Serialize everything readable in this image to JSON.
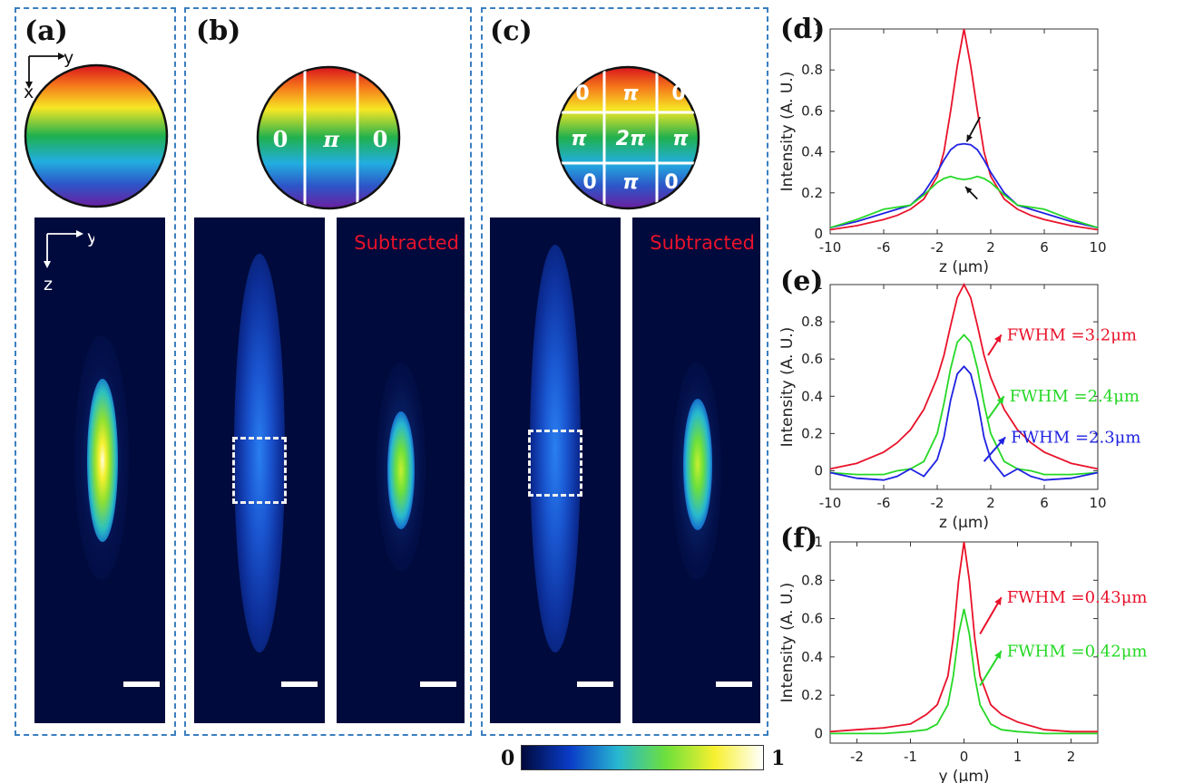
{
  "panels": {
    "a": {
      "label": "(a)"
    },
    "b": {
      "label": "(b)",
      "subtracted": "Subtracted"
    },
    "c": {
      "label": "(c)",
      "subtracted": "Subtracted"
    },
    "d": {
      "label": "(d)"
    },
    "e": {
      "label": "(e)"
    },
    "f": {
      "label": "(f)"
    }
  },
  "axes_glyphs": {
    "y": "y",
    "x": "x",
    "z": "z"
  },
  "phase_masks": {
    "b": [
      "0",
      "π",
      "0"
    ],
    "c": [
      "0",
      "π",
      "0",
      "π",
      "2π",
      "π",
      "0",
      "π",
      "0"
    ]
  },
  "colorbar": {
    "min": "0",
    "max": "1",
    "stops": [
      "#000a3c",
      "#0a3cc8",
      "#28b8d0",
      "#6ee03a",
      "#f8f030",
      "#ffffff"
    ]
  },
  "colors": {
    "red": "#e8122a",
    "green": "#26d826",
    "blue": "#1f22e0",
    "dash_border": "#3a7fc1",
    "dark_bg": "#000a3c"
  },
  "chart_data": [
    {
      "type": "line",
      "label": "(d)",
      "xlabel": "z (μm)",
      "ylabel": "Intensity (A. U.)",
      "xlim": [
        -10,
        10
      ],
      "ylim": [
        0,
        1
      ],
      "xticks": [
        "-10",
        "-6",
        "-2",
        "2",
        "6",
        "10"
      ],
      "yticks": [
        "0",
        "0.2",
        "0.4",
        "0.6",
        "0.8",
        "1"
      ],
      "annotations": [],
      "series": [
        {
          "color": "#e8122a",
          "x": [
            -10,
            -8,
            -6,
            -5,
            -4,
            -3,
            -2,
            -1.5,
            -1,
            -0.5,
            0,
            0.5,
            1,
            1.5,
            2,
            3,
            4,
            5,
            6,
            8,
            10
          ],
          "y": [
            0.02,
            0.04,
            0.07,
            0.09,
            0.12,
            0.17,
            0.28,
            0.4,
            0.6,
            0.82,
            1,
            0.82,
            0.6,
            0.4,
            0.28,
            0.17,
            0.12,
            0.09,
            0.07,
            0.04,
            0.02
          ]
        },
        {
          "color": "#1f22e0",
          "x": [
            -10,
            -8,
            -6,
            -5,
            -4,
            -3,
            -2,
            -1.5,
            -1,
            -0.5,
            0,
            0.5,
            1,
            1.5,
            2,
            3,
            4,
            5,
            6,
            8,
            10
          ],
          "y": [
            0.03,
            0.06,
            0.1,
            0.12,
            0.14,
            0.2,
            0.3,
            0.36,
            0.41,
            0.435,
            0.44,
            0.435,
            0.41,
            0.36,
            0.3,
            0.2,
            0.14,
            0.12,
            0.1,
            0.06,
            0.03
          ]
        },
        {
          "color": "#26d826",
          "x": [
            -10,
            -8,
            -6,
            -5,
            -4,
            -3,
            -2,
            -1.5,
            -1,
            -0.5,
            0,
            0.5,
            1,
            1.5,
            2,
            3,
            4,
            5,
            6,
            8,
            10
          ],
          "y": [
            0.03,
            0.07,
            0.12,
            0.13,
            0.14,
            0.19,
            0.25,
            0.27,
            0.28,
            0.27,
            0.265,
            0.27,
            0.28,
            0.27,
            0.25,
            0.19,
            0.14,
            0.13,
            0.12,
            0.07,
            0.03
          ]
        }
      ]
    },
    {
      "type": "line",
      "label": "(e)",
      "xlabel": "z (μm)",
      "ylabel": "Intensity (A. U.)",
      "xlim": [
        -10,
        10
      ],
      "ylim": [
        -0.1,
        1
      ],
      "xticks": [
        "-10",
        "-6",
        "-2",
        "2",
        "6",
        "10"
      ],
      "yticks": [
        "0",
        "0.2",
        "0.4",
        "0.6",
        "0.8",
        "1"
      ],
      "annotations": [
        {
          "text": "FWHM =3.2μm",
          "color": "#e8122a"
        },
        {
          "text": "FWHM =2.4μm",
          "color": "#26d826"
        },
        {
          "text": "FWHM =2.3μm",
          "color": "#1f22e0"
        }
      ],
      "series": [
        {
          "color": "#e8122a",
          "x": [
            -10,
            -8,
            -6,
            -5,
            -4,
            -3,
            -2,
            -1.5,
            -1,
            -0.5,
            0,
            0.5,
            1,
            1.5,
            2,
            3,
            4,
            5,
            6,
            8,
            10
          ],
          "y": [
            0.01,
            0.04,
            0.1,
            0.15,
            0.22,
            0.33,
            0.5,
            0.62,
            0.78,
            0.93,
            1,
            0.93,
            0.78,
            0.62,
            0.5,
            0.33,
            0.22,
            0.15,
            0.1,
            0.04,
            0.01
          ]
        },
        {
          "color": "#26d826",
          "x": [
            -10,
            -8,
            -6,
            -5,
            -4,
            -3,
            -2,
            -1.5,
            -1,
            -0.5,
            0,
            0.5,
            1,
            1.5,
            2,
            3,
            4,
            5,
            6,
            8,
            10
          ],
          "y": [
            -0.01,
            -0.02,
            -0.02,
            0,
            0.01,
            0.05,
            0.2,
            0.36,
            0.55,
            0.69,
            0.73,
            0.69,
            0.55,
            0.36,
            0.2,
            0.05,
            0.01,
            0,
            -0.02,
            -0.02,
            -0.01
          ]
        },
        {
          "color": "#1f22e0",
          "x": [
            -10,
            -8,
            -6,
            -5,
            -4,
            -3,
            -2,
            -1.5,
            -1,
            -0.5,
            0,
            0.5,
            1,
            1.5,
            2,
            3,
            4,
            5,
            6,
            8,
            10
          ],
          "y": [
            -0.01,
            -0.04,
            -0.05,
            -0.03,
            0.01,
            -0.03,
            0.06,
            0.18,
            0.38,
            0.52,
            0.56,
            0.52,
            0.38,
            0.18,
            0.06,
            -0.03,
            0.01,
            -0.03,
            -0.05,
            -0.04,
            -0.01
          ]
        }
      ]
    },
    {
      "type": "line",
      "label": "(f)",
      "xlabel": "y (μm)",
      "ylabel": "Intensity (A. U.)",
      "xlim": [
        -2.5,
        2.5
      ],
      "ylim": [
        -0.05,
        1
      ],
      "xticks": [
        "-2",
        "-1",
        "0",
        "1",
        "2"
      ],
      "yticks": [
        "0",
        "0.2",
        "0.4",
        "0.6",
        "0.8",
        "1"
      ],
      "annotations": [
        {
          "text": "FWHM =0.43μm",
          "color": "#e8122a"
        },
        {
          "text": "FWHM =0.42μm",
          "color": "#26d826"
        }
      ],
      "series": [
        {
          "color": "#e8122a",
          "x": [
            -2.5,
            -2,
            -1.5,
            -1,
            -0.7,
            -0.5,
            -0.3,
            -0.2,
            -0.1,
            0,
            0.1,
            0.2,
            0.3,
            0.5,
            0.7,
            1,
            1.5,
            2,
            2.5
          ],
          "y": [
            0.01,
            0.02,
            0.03,
            0.05,
            0.1,
            0.15,
            0.3,
            0.5,
            0.8,
            1,
            0.8,
            0.5,
            0.3,
            0.15,
            0.1,
            0.06,
            0.02,
            0.01,
            0.01
          ]
        },
        {
          "color": "#26d826",
          "x": [
            -2.5,
            -2,
            -1.5,
            -1,
            -0.7,
            -0.5,
            -0.3,
            -0.2,
            -0.1,
            0,
            0.1,
            0.2,
            0.3,
            0.5,
            0.7,
            1,
            1.5,
            2,
            2.5
          ],
          "y": [
            0,
            0,
            0,
            0.01,
            0.02,
            0.05,
            0.15,
            0.3,
            0.52,
            0.65,
            0.52,
            0.3,
            0.15,
            0.05,
            0.02,
            0.01,
            0,
            0,
            0
          ]
        }
      ]
    }
  ]
}
